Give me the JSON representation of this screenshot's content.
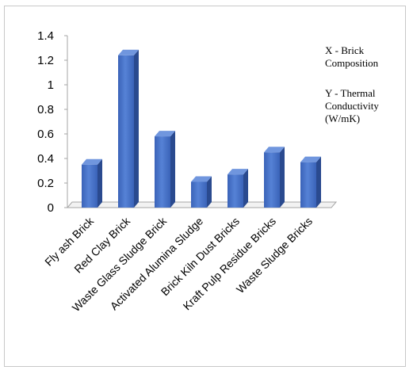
{
  "chart_data": {
    "type": "bar",
    "style": "3d-column",
    "categories": [
      "Fly ash Brick",
      "Red Clay Brick",
      "Waste Glass Sludge Brick",
      "Activated Alumina Sludge",
      "Brick Kiln Dust Bricks",
      "Kraft Pulp Residue Bricks",
      "Waste Sludge Bricks"
    ],
    "values": [
      0.35,
      1.24,
      0.58,
      0.21,
      0.27,
      0.45,
      0.37
    ],
    "ylim": [
      0,
      1.4
    ],
    "yticks": [
      "0",
      "0.2",
      "0.4",
      "0.6",
      "0.8",
      "1",
      "1.2",
      "1.4"
    ],
    "grid": false,
    "bar_color": "#4472c4",
    "annotations": {
      "x_note": "X - Brick Composition",
      "y_note": "Y - Thermal Conductivity (W/mK)"
    }
  }
}
